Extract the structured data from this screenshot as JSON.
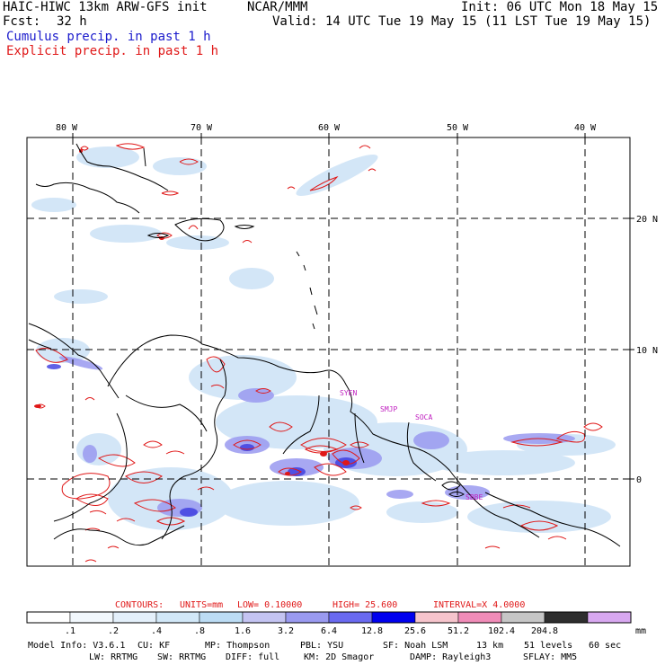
{
  "header": {
    "model_title": "HAIC-HIWC 13km ARW-GFS init",
    "org": "NCAR/MMM",
    "init": "Init: 06 UTC Mon 18 May 15",
    "fcst_label": "Fcst:",
    "fcst_value": "32 h",
    "valid": "Valid: 14 UTC Tue 19 May 15 (11 LST Tue 19 May 15)",
    "legend_cumulus": "Cumulus precip. in past 1 h",
    "legend_explicit": "Explicit precip. in past 1 h"
  },
  "map": {
    "lon_labels": [
      "80 W",
      "70 W",
      "60 W",
      "50 W",
      "40 W"
    ],
    "lat_labels": [
      "20 N",
      "10 N",
      "0"
    ],
    "station_labels": [
      "SYEN",
      "SMJP",
      "SOCA",
      "SBBE"
    ],
    "colors": {
      "cumulus_light": "#cfe4f7",
      "cumulus_mid": "#8c8cf0",
      "cumulus_strong": "#3a3ae0",
      "explicit_contour": "#e01818",
      "coast": "#000000",
      "grid": "#000000",
      "station_label": "#c020c0"
    }
  },
  "contours": {
    "label": "CONTOURS:",
    "units": "UNITS=mm",
    "low": "LOW= 0.10000",
    "high": "HIGH= 25.600",
    "interval": "INTERVAL=X 4.0000"
  },
  "colorbar": {
    "tick_labels": [
      ".1",
      ".2",
      ".4",
      ".8",
      "1.6",
      "3.2",
      "6.4",
      "12.8",
      "25.6",
      "51.2",
      "102.4",
      "204.8"
    ],
    "unit": "mm",
    "colors": [
      "#ffffff",
      "#f2f8fd",
      "#e4f0fb",
      "#d2e8f8",
      "#bcdcf4",
      "#c4c4f2",
      "#9a9af0",
      "#6a6af0",
      "#0000ee",
      "#f6c4cc",
      "#f08cb8",
      "#c6c6c6",
      "#2e2e2e",
      "#d8a8f0"
    ]
  },
  "footer": {
    "line1": [
      "Model Info: V3.6.1",
      "CU: KF",
      "MP: Thompson",
      "PBL: YSU",
      "SF: Noah LSM",
      "13 km",
      "51 levels",
      "60 sec"
    ],
    "line2": [
      "LW: RRTMG",
      "SW: RRTMG",
      "DIFF: full",
      "KM: 2D Smagor",
      "DAMP: Rayleigh3",
      "SFLAY: MM5"
    ]
  }
}
